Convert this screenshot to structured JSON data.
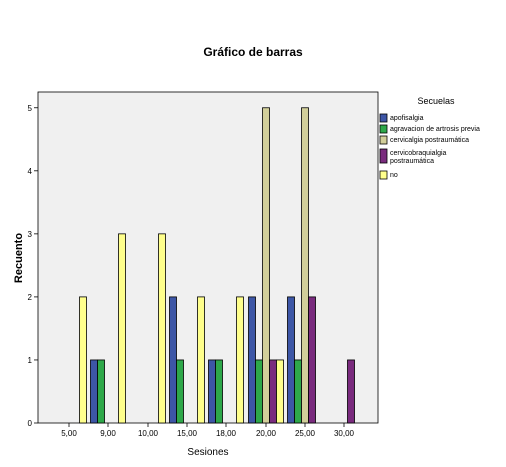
{
  "chart_data": {
    "type": "bar",
    "title": "Gráfico de barras",
    "xlabel": "Sesiones",
    "ylabel": "Recuento",
    "ylim": [
      0,
      5.25
    ],
    "yticks": [
      "0",
      "1",
      "2",
      "3",
      "4",
      "5"
    ],
    "categories": [
      "5,00",
      "9,00",
      "10,00",
      "15,00",
      "18,00",
      "20,00",
      "25,00",
      "30,00"
    ],
    "legend_title": "Secuelas",
    "legend_position": "right",
    "grid": false,
    "plot_background": "#f0f0f0",
    "series": [
      {
        "name": "apofisalgia",
        "color": "#3d56a6",
        "values": [
          0,
          1,
          0,
          2,
          1,
          2,
          2,
          0
        ]
      },
      {
        "name": "agravacion de artrosis previa",
        "color": "#2ea84a",
        "values": [
          0,
          1,
          0,
          1,
          1,
          1,
          1,
          0
        ]
      },
      {
        "name": "cervicalgia postraumática",
        "color": "#d2cf9a",
        "values": [
          0,
          0,
          0,
          0,
          0,
          5,
          5,
          0
        ]
      },
      {
        "name": "cervicobraquialgia postraumática",
        "color": "#7a2b7e",
        "values": [
          0,
          0,
          0,
          0,
          0,
          1,
          2,
          1
        ]
      },
      {
        "name": "no",
        "color": "#ffff8c",
        "values": [
          2,
          3,
          3,
          2,
          2,
          1,
          0,
          0
        ]
      }
    ]
  }
}
